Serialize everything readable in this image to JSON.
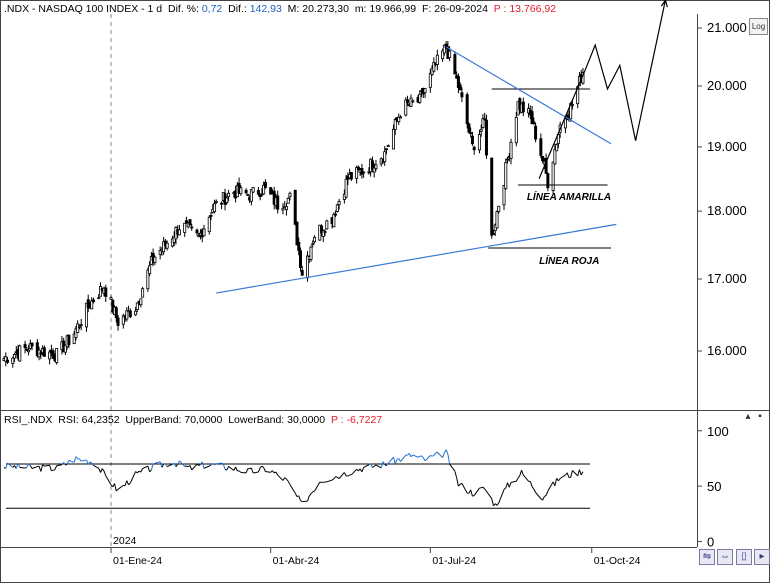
{
  "header": {
    "symbol": ".NDX - NASDAQ 100 INDEX - 1 d",
    "change_pct_label": "Dif. %:",
    "change_pct_value": "0,72",
    "change_label": "Dif.:",
    "change_value": "142,93",
    "high_label": "M: 20.273,30",
    "low_label": "m: 19.966,99",
    "date_label": "F: 26-09-2024",
    "price_label": "P : 13.766,92"
  },
  "log_button": "Log",
  "rsi_header": {
    "name": "RSI_.NDX",
    "value_label": "RSI: 64,2352",
    "upper_label": "UpperBand: 70,0000",
    "lower_label": "LowerBand: 30,0000",
    "p_label": "P : -6,7227"
  },
  "colors": {
    "trendline": "#3a78d8",
    "candle_up": "#ffffff",
    "candle_down": "#000000",
    "rsi_over": "#1f6fd0",
    "red": "#e0202a",
    "blue": "#1f5fbf"
  },
  "chart_data": [
    {
      "type": "candlestick",
      "title": ".NDX - NASDAQ 100 INDEX - 1 d",
      "scale": "log",
      "y_ticks": [
        "21.000",
        "20.000",
        "19.000",
        "18.000",
        "17.000",
        "16.000"
      ],
      "y_tick_values": [
        21000,
        20000,
        19000,
        18000,
        17000,
        16000
      ],
      "ylim": [
        15250,
        21250
      ],
      "x_ticks": [
        "01-Ene-24",
        "01-Abr-24",
        "01-Jul-24",
        "01-Oct-24"
      ],
      "x_tick_dates": [
        "2024-01-01",
        "2024-04-01",
        "2024-07-01",
        "2024-10-01"
      ],
      "year_label": "2024",
      "xlim": [
        "2023-11-01",
        "2024-11-30"
      ],
      "last_date": "2024-09-26",
      "close_path": [
        [
          "2023-11-01",
          15900
        ],
        [
          "2023-11-15",
          16050
        ],
        [
          "2023-12-01",
          15950
        ],
        [
          "2023-12-10",
          16200
        ],
        [
          "2023-12-20",
          16650
        ],
        [
          "2023-12-28",
          16900
        ],
        [
          "2024-01-05",
          16400
        ],
        [
          "2024-01-15",
          16600
        ],
        [
          "2024-01-25",
          17300
        ],
        [
          "2024-02-01",
          17500
        ],
        [
          "2024-02-10",
          17800
        ],
        [
          "2024-02-20",
          17600
        ],
        [
          "2024-02-28",
          18050
        ],
        [
          "2024-03-10",
          18300
        ],
        [
          "2024-03-20",
          18250
        ],
        [
          "2024-03-28",
          18350
        ],
        [
          "2024-04-05",
          18100
        ],
        [
          "2024-04-12",
          18200
        ],
        [
          "2024-04-19",
          17100
        ],
        [
          "2024-04-26",
          17650
        ],
        [
          "2024-05-06",
          17900
        ],
        [
          "2024-05-15",
          18500
        ],
        [
          "2024-05-25",
          18650
        ],
        [
          "2024-06-05",
          18900
        ],
        [
          "2024-06-15",
          19650
        ],
        [
          "2024-06-25",
          19750
        ],
        [
          "2024-07-03",
          20300
        ],
        [
          "2024-07-10",
          20670
        ],
        [
          "2024-07-17",
          20000
        ],
        [
          "2024-07-25",
          19000
        ],
        [
          "2024-08-01",
          19400
        ],
        [
          "2024-08-05",
          17600
        ],
        [
          "2024-08-12",
          18500
        ],
        [
          "2024-08-20",
          19700
        ],
        [
          "2024-08-27",
          19500
        ],
        [
          "2024-09-03",
          18800
        ],
        [
          "2024-09-06",
          18450
        ],
        [
          "2024-09-13",
          19350
        ],
        [
          "2024-09-20",
          19700
        ],
        [
          "2024-09-26",
          20250
        ]
      ],
      "horizontal_lines": [
        {
          "value": 19950,
          "start": "2024-08-05",
          "end": "2024-09-30"
        },
        {
          "value": 18400,
          "start": "2024-08-20",
          "end": "2024-10-10"
        },
        {
          "value": 17450,
          "start": "2024-08-03",
          "end": "2024-10-12"
        }
      ],
      "trendlines": [
        {
          "from": [
            "2024-07-10",
            20670
          ],
          "to": [
            "2024-10-12",
            19050
          ]
        },
        {
          "from": [
            "2024-03-01",
            16800
          ],
          "to": [
            "2024-10-15",
            17800
          ]
        }
      ],
      "projection": [
        [
          "2024-09-01",
          18500
        ],
        [
          "2024-09-27",
          20250
        ],
        [
          "2024-10-03",
          20700
        ],
        [
          "2024-10-10",
          19950
        ],
        [
          "2024-10-17",
          20350
        ],
        [
          "2024-10-26",
          19100
        ],
        [
          "2024-11-12",
          21500
        ]
      ],
      "annotations": [
        "LÍNEA AMARILLA",
        "LÍNEA ROJA"
      ]
    },
    {
      "type": "line",
      "title": "RSI_.NDX",
      "y_ticks": [
        "100",
        "50",
        "0"
      ],
      "y_tick_values": [
        100,
        50,
        0
      ],
      "ylim": [
        -5,
        107
      ],
      "bands": [
        70,
        30
      ],
      "series": [
        {
          "name": "RSI_.NDX",
          "points": [
            [
              "2023-11-01",
              68
            ],
            [
              "2023-11-15",
              67
            ],
            [
              "2023-12-01",
              66
            ],
            [
              "2023-12-12",
              75
            ],
            [
              "2023-12-22",
              72
            ],
            [
              "2024-01-05",
              46
            ],
            [
              "2024-01-15",
              60
            ],
            [
              "2024-01-25",
              67
            ],
            [
              "2024-02-05",
              72
            ],
            [
              "2024-02-15",
              66
            ],
            [
              "2024-02-25",
              70
            ],
            [
              "2024-03-08",
              67
            ],
            [
              "2024-03-20",
              63
            ],
            [
              "2024-03-30",
              66
            ],
            [
              "2024-04-10",
              55
            ],
            [
              "2024-04-19",
              33
            ],
            [
              "2024-04-29",
              55
            ],
            [
              "2024-05-10",
              60
            ],
            [
              "2024-05-22",
              66
            ],
            [
              "2024-06-05",
              70
            ],
            [
              "2024-06-20",
              78
            ],
            [
              "2024-06-28",
              74
            ],
            [
              "2024-07-10",
              80
            ],
            [
              "2024-07-17",
              52
            ],
            [
              "2024-07-25",
              44
            ],
            [
              "2024-08-01",
              48
            ],
            [
              "2024-08-07",
              33
            ],
            [
              "2024-08-14",
              50
            ],
            [
              "2024-08-22",
              62
            ],
            [
              "2024-09-03",
              40
            ],
            [
              "2024-09-13",
              58
            ],
            [
              "2024-09-26",
              64
            ]
          ]
        }
      ]
    }
  ]
}
